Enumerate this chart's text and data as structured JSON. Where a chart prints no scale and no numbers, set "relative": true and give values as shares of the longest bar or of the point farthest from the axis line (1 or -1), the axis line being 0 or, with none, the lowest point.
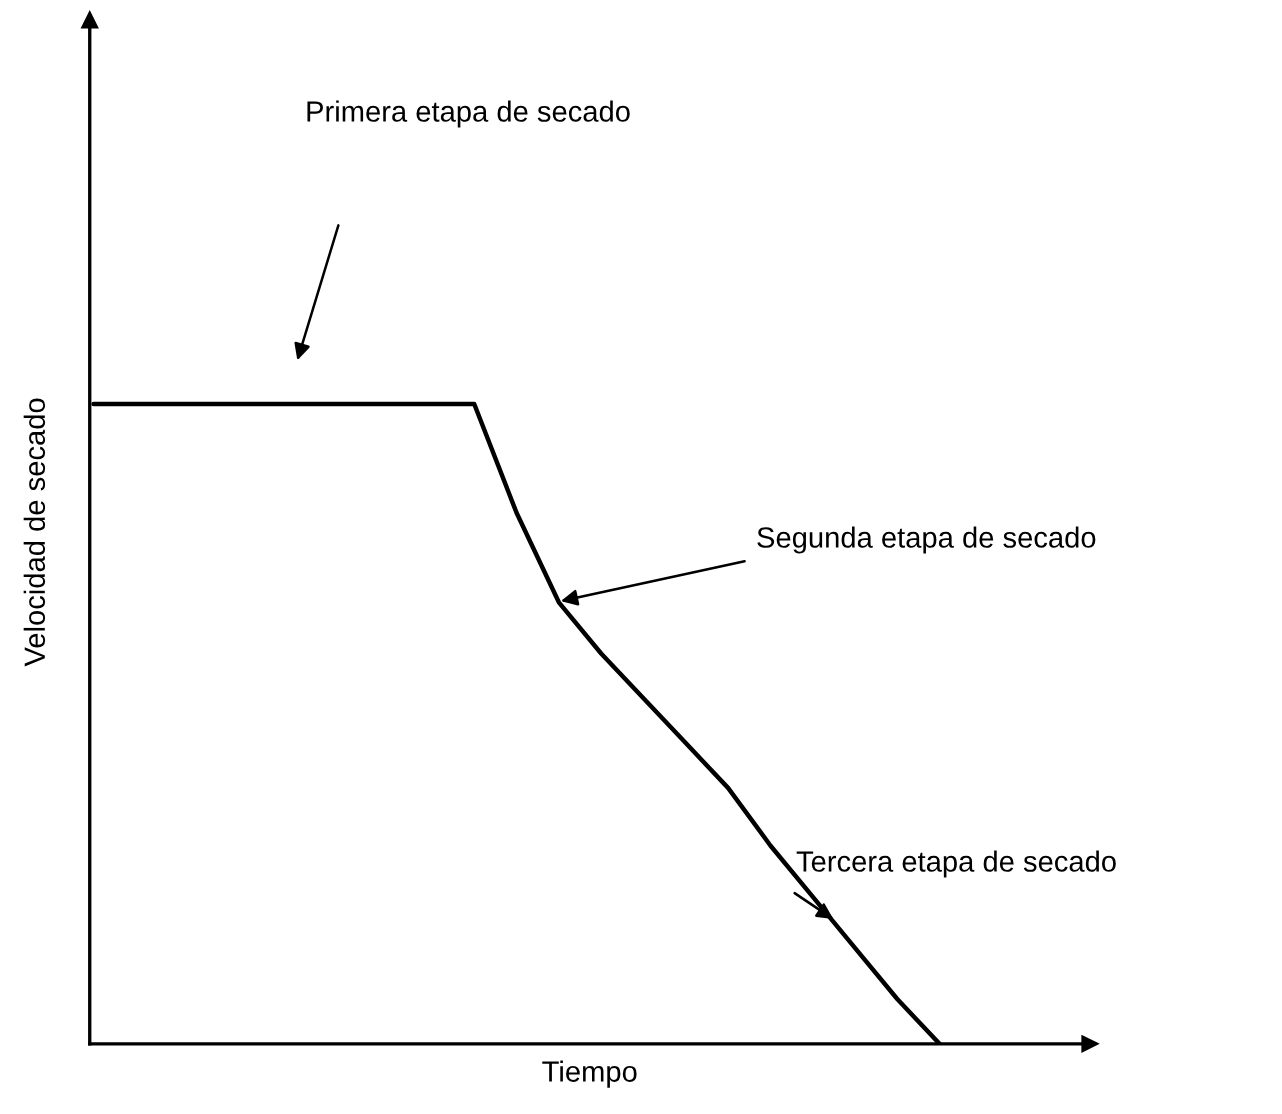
{
  "chart_data": {
    "type": "line",
    "relative": true,
    "xlabel": "Tiempo",
    "ylabel": "Velocidad de secado",
    "categories": [
      null,
      null,
      null,
      null,
      null,
      null,
      null,
      null,
      null,
      null,
      null,
      null,
      null,
      null,
      null,
      null,
      null,
      null,
      null,
      null,
      null,
      null,
      null,
      null
    ],
    "series": [
      {
        "color": "#000000",
        "values": [
          1.0,
          1.0,
          1.0,
          1.0,
          1.0,
          1.0,
          1.0,
          1.0,
          1.0,
          1.0,
          0.83,
          0.69,
          0.61,
          0.54,
          0.47,
          0.4,
          0.31,
          0.23,
          0.15,
          0.07,
          0.0,
          null,
          null,
          null
        ]
      }
    ],
    "annotations": [
      "Primera etapa de secado",
      "Segunda etapa de secado",
      "Tercera etapa de secado"
    ],
    "grid": false,
    "legend": false,
    "tick_labels": false
  }
}
